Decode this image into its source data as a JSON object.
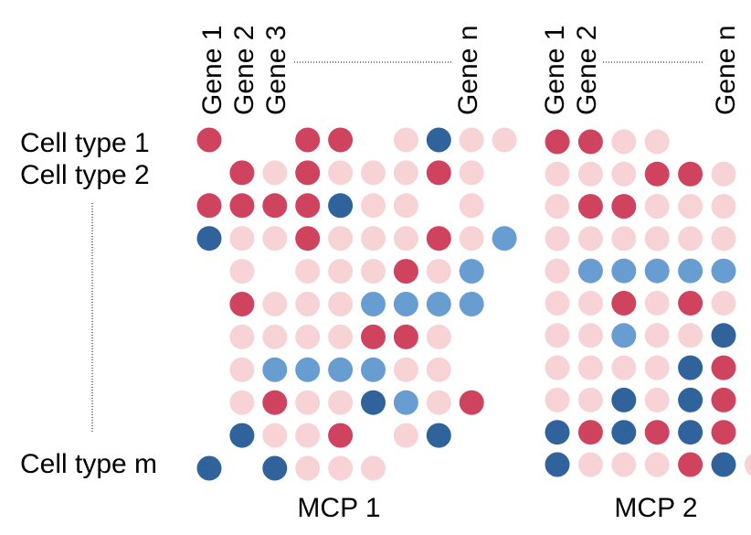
{
  "colors": {
    "strong_red": "#d0435e",
    "light_pink": "#f7d3d6",
    "mid_blue": "#689dd2",
    "dark_blue": "#30639c"
  },
  "legend_codes": {
    "R": "strong_red",
    "p": "light_pink",
    "b": "mid_blue",
    "B": "dark_blue",
    ".": "empty"
  },
  "row_labels": {
    "first": "Cell type 1",
    "second": "Cell type 2",
    "last": "Cell type m"
  },
  "panels": [
    {
      "name": "MCP 1",
      "gene_labels": [
        "Gene 1",
        "Gene 2",
        "Gene 3",
        "Gene n"
      ],
      "matrix": [
        "R..RR.pBpp",
        ".RpRpppRp",
        "RRRRBpp.p",
        "BppRpppRpb",
        ".p.pppRpb",
        ".Rpppbbbb",
        ".ppppRRp",
        ".pbbbbpp",
        ".pRppBbpR",
        ".BppR.pB",
        "B.Bppp"
      ]
    },
    {
      "name": "MCP 2",
      "gene_labels": [
        "Gene 1",
        "Gene 2",
        "Gene n"
      ],
      "matrix": [
        "RRpp",
        "pppRRp",
        "pRRppp",
        "pppppp",
        "pbbbbb",
        "ppRpRp",
        "ppbppB",
        "ppppBR",
        "ppBpBR",
        "BRBRBR",
        "BpppRBp"
      ]
    }
  ]
}
